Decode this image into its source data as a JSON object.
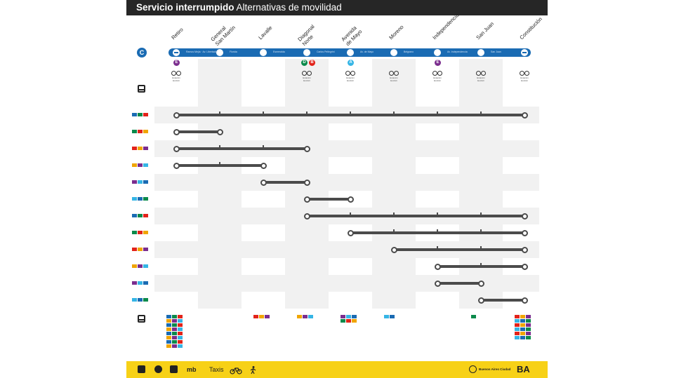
{
  "header": {
    "title": "Servicio interrumpido",
    "subtitle": "Alternativas de movilidad"
  },
  "line": {
    "badge": "C",
    "color": "#1a6bb3"
  },
  "stations": [
    {
      "name": "Retiro"
    },
    {
      "name": "General\nSan Martín"
    },
    {
      "name": "Lavalle"
    },
    {
      "name": "Diagonal\nNorte"
    },
    {
      "name": "Avenida\nde Mayo"
    },
    {
      "name": "Moreno"
    },
    {
      "name": "Independencia"
    },
    {
      "name": "San Juan"
    },
    {
      "name": "Constitución"
    }
  ],
  "streets": [
    "Ramos Mejía · Av. Libertador",
    "Florida",
    "Esmeralda",
    "Carlos Pellegrini",
    "Av. de Mayo",
    "Belgrano",
    "Av. Independencia",
    "San Juan"
  ],
  "transfers": [
    {
      "label": "E",
      "color": "#7b2d8e"
    },
    {
      "label": "D",
      "color": "#0b8a4b"
    },
    {
      "label": "B",
      "color": "#e2231a"
    },
    {
      "label": "A",
      "color": "#35b5e5"
    },
    {
      "label": "E",
      "color": "#7b2d8e"
    }
  ],
  "bike_label": "Estación\nEcobici",
  "routes": [
    {
      "from": 0,
      "to": 8
    },
    {
      "from": 0,
      "to": 1
    },
    {
      "from": 0,
      "to": 3
    },
    {
      "from": 0,
      "to": 2
    },
    {
      "from": 2,
      "to": 3
    },
    {
      "from": 3,
      "to": 4
    },
    {
      "from": 3,
      "to": 8
    },
    {
      "from": 4,
      "to": 8
    },
    {
      "from": 5,
      "to": 8
    },
    {
      "from": 6,
      "to": 8
    },
    {
      "from": 6,
      "to": 7
    },
    {
      "from": 7,
      "to": 8
    }
  ],
  "footer": {
    "mb": "mb",
    "taxis": "Taxis",
    "city": "Buenos Aires Ciudad",
    "ba": "BA"
  }
}
